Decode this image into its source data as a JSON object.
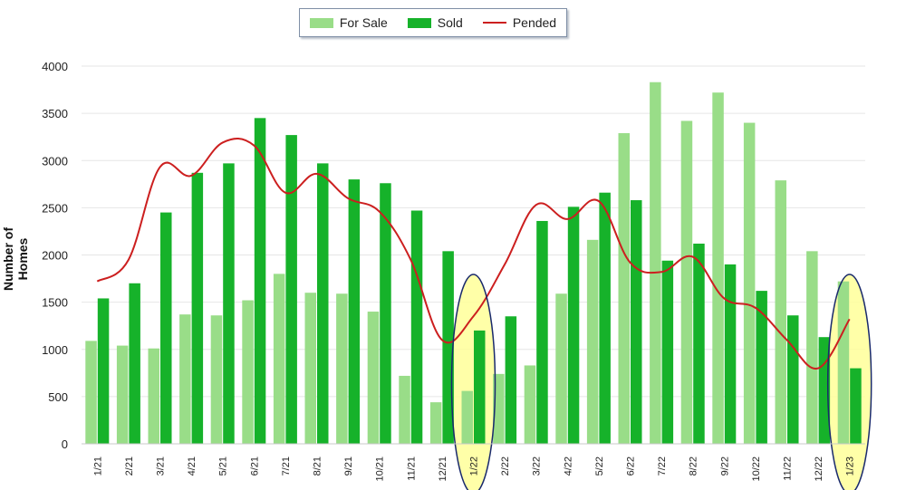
{
  "chart_data": {
    "type": "bar",
    "ylabel": "Number of Homes",
    "ylim": [
      0,
      4000
    ],
    "yticks": [
      "0",
      "500",
      "1000",
      "1500",
      "2000",
      "2500",
      "3000",
      "3500",
      "4000"
    ],
    "categories": [
      "1/21",
      "2/21",
      "3/21",
      "4/21",
      "5/21",
      "6/21",
      "7/21",
      "8/21",
      "9/21",
      "10/21",
      "11/21",
      "12/21",
      "1/22",
      "2/22",
      "3/22",
      "4/22",
      "5/22",
      "6/22",
      "7/22",
      "8/22",
      "9/22",
      "10/22",
      "11/22",
      "12/22",
      "1/23"
    ],
    "series": [
      {
        "name": "For Sale",
        "type": "bar",
        "color": "#99dd88",
        "values": [
          1090,
          1040,
          1010,
          1370,
          1360,
          1520,
          1800,
          1600,
          1590,
          1400,
          720,
          440,
          560,
          740,
          830,
          1590,
          2160,
          3290,
          3830,
          3420,
          3720,
          3400,
          2790,
          2040,
          1720
        ]
      },
      {
        "name": "Sold",
        "type": "bar",
        "color": "#16b22a",
        "values": [
          1540,
          1700,
          2450,
          2870,
          2970,
          3450,
          3270,
          2970,
          2800,
          2760,
          2470,
          2040,
          1200,
          1350,
          2360,
          2510,
          2660,
          2580,
          1940,
          2120,
          1900,
          1620,
          1360,
          1130,
          800
        ]
      },
      {
        "name": "Pended",
        "type": "line",
        "color": "#cc1f1f",
        "values": [
          1720,
          1950,
          2930,
          2840,
          3190,
          3160,
          2660,
          2860,
          2600,
          2460,
          1950,
          1100,
          1350,
          1900,
          2530,
          2380,
          2570,
          1920,
          1820,
          1980,
          1540,
          1440,
          1100,
          800,
          1320
        ]
      }
    ],
    "highlight_categories": [
      "1/22",
      "1/23"
    ],
    "highlight_color": "#ffff99",
    "highlight_outline": "#1a2a6c",
    "grid": true,
    "legend_position": "top-center"
  }
}
